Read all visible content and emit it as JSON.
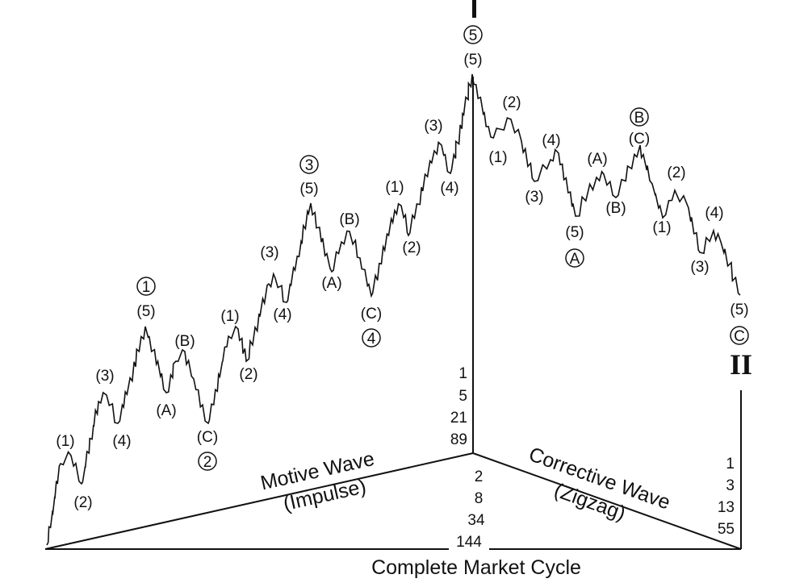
{
  "diagram": {
    "title": "",
    "roman_left": "I",
    "roman_right": "II",
    "motive": {
      "line1": "Motive Wave",
      "line2": "(Impulse)"
    },
    "corrective": {
      "line1": "Corrective Wave",
      "line2": "(Zigzag)"
    },
    "cycle": "Complete Market Cycle",
    "counts_motive": [
      "1",
      "5",
      "21",
      "89"
    ],
    "counts_total": [
      "2",
      "8",
      "34",
      "144"
    ],
    "counts_corrective": [
      "1",
      "3",
      "13",
      "55"
    ],
    "motive_labels": {
      "w1_c": "1",
      "w1_5": "(5)",
      "w1_1": "(1)",
      "w1_2": "(2)",
      "w1_3": "(3)",
      "w1_4": "(4)",
      "w2_a": "(A)",
      "w2_b": "(B)",
      "w2_cc": "(C)",
      "w2_c": "2",
      "w3_1": "(1)",
      "w3_2": "(2)",
      "w3_3": "(3)",
      "w3_4": "(4)",
      "w3_5": "(5)",
      "w3_c": "3",
      "w4_a": "(A)",
      "w4_b": "(B)",
      "w4_cc": "(C)",
      "w4_c": "4",
      "w5_1": "(1)",
      "w5_2": "(2)",
      "w5_3": "(3)",
      "w5_4": "(4)",
      "w5_5": "(5)",
      "w5_c": "5"
    },
    "corrective_labels": {
      "a_1": "(1)",
      "a_2": "(2)",
      "a_3": "(3)",
      "a_4": "(4)",
      "a_5": "(5)",
      "a_c": "A",
      "b_a": "(A)",
      "b_b": "(B)",
      "b_cc": "(C)",
      "b_c": "B",
      "c_1": "(1)",
      "c_2": "(2)",
      "c_3": "(3)",
      "c_4": "(4)",
      "c_5": "(5)",
      "c_c": "C"
    }
  }
}
